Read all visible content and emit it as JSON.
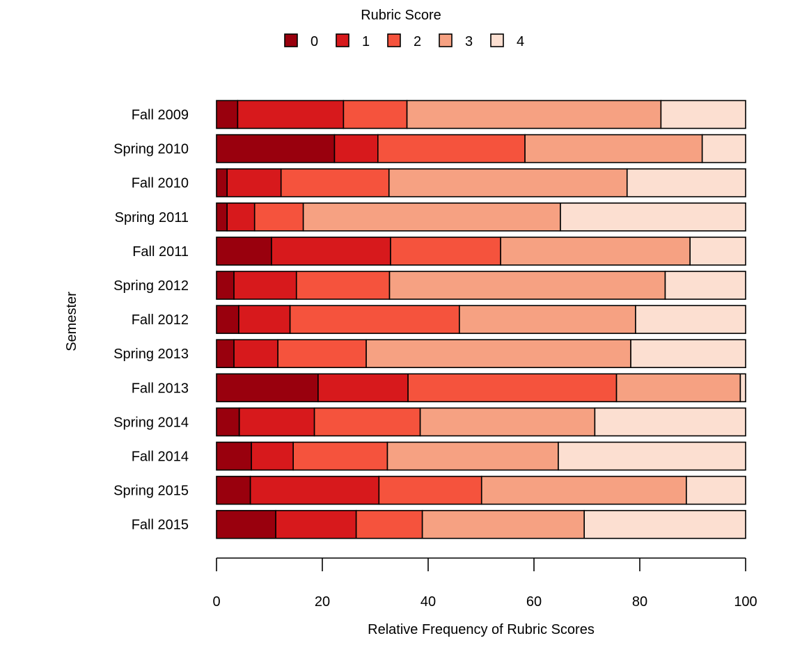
{
  "chart_data": {
    "type": "bar",
    "orientation": "horizontal",
    "stacked": true,
    "title": "",
    "xlabel": "Relative Frequency of Rubric Scores",
    "ylabel": "Semester",
    "xlim": [
      0,
      100
    ],
    "xticks": [
      0,
      20,
      40,
      60,
      80,
      100
    ],
    "grid": false,
    "legend": {
      "title": "Rubric Score",
      "placement": "top-center",
      "labels": [
        "0",
        "1",
        "2",
        "3",
        "4"
      ]
    },
    "colors": [
      "#99000d",
      "#d7191c",
      "#f5533d",
      "#f6a182",
      "#fcdfd1"
    ],
    "categories": [
      "Fall 2009",
      "Spring 2010",
      "Fall 2010",
      "Spring 2011",
      "Fall 2011",
      "Spring 2012",
      "Fall 2012",
      "Spring 2013",
      "Fall 2013",
      "Spring 2014",
      "Fall 2014",
      "Spring 2015",
      "Fall 2015"
    ],
    "series": [
      {
        "name": "0",
        "values": [
          4.0,
          22.3,
          2.0,
          2.0,
          10.4,
          3.3,
          4.2,
          3.3,
          19.2,
          4.3,
          6.6,
          6.4,
          11.2
        ]
      },
      {
        "name": "1",
        "values": [
          20.0,
          8.2,
          10.2,
          5.2,
          22.5,
          11.8,
          9.7,
          8.3,
          17.0,
          14.2,
          7.9,
          24.3,
          15.2
        ]
      },
      {
        "name": "2",
        "values": [
          12.0,
          27.8,
          20.4,
          9.2,
          20.8,
          17.6,
          32.0,
          16.7,
          39.4,
          20.0,
          17.8,
          19.4,
          12.5
        ]
      },
      {
        "name": "3",
        "values": [
          48.0,
          33.5,
          45.0,
          48.6,
          35.8,
          52.1,
          33.3,
          50.0,
          23.4,
          33.0,
          32.3,
          38.7,
          30.6
        ]
      },
      {
        "name": "4",
        "values": [
          16.0,
          8.2,
          22.4,
          35.0,
          10.5,
          15.2,
          20.8,
          21.7,
          1.0,
          28.5,
          35.4,
          11.2,
          30.5
        ]
      }
    ]
  }
}
